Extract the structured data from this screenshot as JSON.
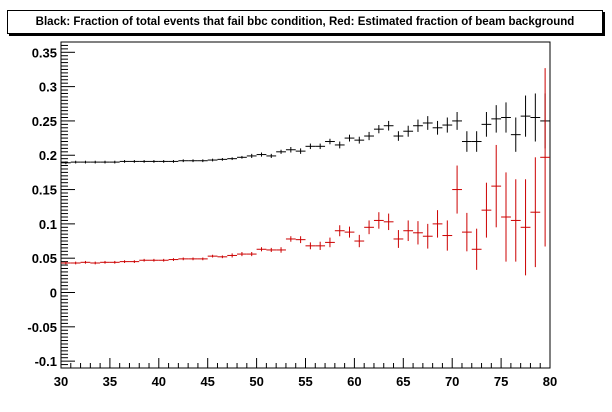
{
  "chart_data": {
    "type": "scatter",
    "title": "Black: Fraction of total events that fail bbc condition, Red: Estimated fraction of beam background",
    "xlabel": "",
    "ylabel": "",
    "xlim": [
      30,
      80
    ],
    "ylim": [
      -0.11,
      0.365
    ],
    "x_ticks": [
      30,
      35,
      40,
      45,
      50,
      55,
      60,
      65,
      70,
      75,
      80
    ],
    "x_tick_labels": [
      "30",
      "35",
      "40",
      "45",
      "50",
      "55",
      "60",
      "65",
      "70",
      "75",
      "80"
    ],
    "y_ticks": [
      -0.1,
      -0.05,
      0,
      0.05,
      0.1,
      0.15,
      0.2,
      0.25,
      0.3,
      0.35
    ],
    "y_tick_labels": [
      "-0.1",
      "-0.05",
      "0",
      "0.05",
      "0.1",
      "0.15",
      "0.2",
      "0.25",
      "0.3",
      "0.35"
    ],
    "grid": false,
    "legend": "none",
    "x_bin_halfwidth": 0.5,
    "series": [
      {
        "color": "#000000",
        "x": [
          30.5,
          31.5,
          32.5,
          33.5,
          34.5,
          35.5,
          36.5,
          37.5,
          38.5,
          39.5,
          40.5,
          41.5,
          42.5,
          43.5,
          44.5,
          45.5,
          46.5,
          47.5,
          48.5,
          49.5,
          50.5,
          51.5,
          52.5,
          53.5,
          54.5,
          55.5,
          56.5,
          57.5,
          58.5,
          59.5,
          60.5,
          61.5,
          62.5,
          63.5,
          64.5,
          65.5,
          66.5,
          67.5,
          68.5,
          69.5,
          70.5,
          71.5,
          72.5,
          73.5,
          74.5,
          75.5,
          76.5,
          77.5,
          78.5,
          79.5
        ],
        "y": [
          0.189,
          0.19,
          0.19,
          0.19,
          0.19,
          0.19,
          0.191,
          0.191,
          0.191,
          0.191,
          0.191,
          0.191,
          0.192,
          0.192,
          0.192,
          0.193,
          0.194,
          0.195,
          0.197,
          0.199,
          0.201,
          0.199,
          0.205,
          0.208,
          0.206,
          0.213,
          0.213,
          0.22,
          0.215,
          0.225,
          0.222,
          0.228,
          0.238,
          0.243,
          0.228,
          0.235,
          0.243,
          0.247,
          0.24,
          0.244,
          0.25,
          0.22,
          0.22,
          0.245,
          0.253,
          0.255,
          0.23,
          0.257,
          0.255,
          0.25
        ],
        "err": [
          0.002,
          0.002,
          0.002,
          0.002,
          0.002,
          0.002,
          0.002,
          0.002,
          0.002,
          0.002,
          0.002,
          0.002,
          0.002,
          0.002,
          0.002,
          0.002,
          0.002,
          0.002,
          0.002,
          0.003,
          0.003,
          0.003,
          0.003,
          0.004,
          0.004,
          0.004,
          0.004,
          0.004,
          0.005,
          0.005,
          0.005,
          0.006,
          0.006,
          0.007,
          0.007,
          0.008,
          0.009,
          0.01,
          0.01,
          0.011,
          0.013,
          0.015,
          0.015,
          0.018,
          0.02,
          0.022,
          0.025,
          0.03,
          0.035,
          0.04
        ]
      },
      {
        "color": "#cc0000",
        "x": [
          30.5,
          31.5,
          32.5,
          33.5,
          34.5,
          35.5,
          36.5,
          37.5,
          38.5,
          39.5,
          40.5,
          41.5,
          42.5,
          43.5,
          44.5,
          45.5,
          46.5,
          47.5,
          48.5,
          49.5,
          50.5,
          51.5,
          52.5,
          53.5,
          54.5,
          55.5,
          56.5,
          57.5,
          58.5,
          59.5,
          60.5,
          61.5,
          62.5,
          63.5,
          64.5,
          65.5,
          66.5,
          67.5,
          68.5,
          69.5,
          70.5,
          71.5,
          72.5,
          73.5,
          74.5,
          75.5,
          76.5,
          77.5,
          78.5,
          79.5
        ],
        "y": [
          0.043,
          0.043,
          0.044,
          0.043,
          0.044,
          0.044,
          0.045,
          0.045,
          0.047,
          0.047,
          0.047,
          0.048,
          0.049,
          0.049,
          0.049,
          0.053,
          0.052,
          0.054,
          0.056,
          0.056,
          0.063,
          0.062,
          0.062,
          0.078,
          0.077,
          0.068,
          0.068,
          0.073,
          0.09,
          0.088,
          0.075,
          0.095,
          0.105,
          0.103,
          0.078,
          0.09,
          0.087,
          0.082,
          0.1,
          0.083,
          0.15,
          0.088,
          0.063,
          0.12,
          0.155,
          0.11,
          0.105,
          0.095,
          0.117,
          0.197
        ],
        "err": [
          0.002,
          0.002,
          0.002,
          0.002,
          0.002,
          0.002,
          0.002,
          0.002,
          0.002,
          0.002,
          0.002,
          0.002,
          0.002,
          0.002,
          0.002,
          0.002,
          0.002,
          0.003,
          0.003,
          0.003,
          0.003,
          0.003,
          0.004,
          0.004,
          0.005,
          0.005,
          0.006,
          0.007,
          0.008,
          0.008,
          0.009,
          0.01,
          0.012,
          0.012,
          0.013,
          0.015,
          0.017,
          0.018,
          0.02,
          0.022,
          0.035,
          0.028,
          0.03,
          0.04,
          0.06,
          0.065,
          0.06,
          0.07,
          0.08,
          0.13
        ]
      }
    ]
  }
}
